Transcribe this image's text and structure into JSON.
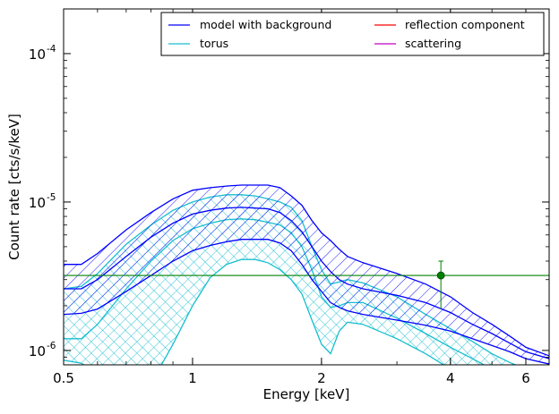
{
  "chart_data": {
    "type": "line",
    "xlabel": "Energy [keV]",
    "ylabel": "Count rate [cts/s/keV]",
    "xscale": "log",
    "yscale": "log",
    "xlim": [
      0.5,
      6.8
    ],
    "ylim": [
      8e-07,
      0.0002
    ],
    "x_ticks": [
      {
        "value": 0.5,
        "label": "0.5"
      },
      {
        "value": 1,
        "label": "1"
      },
      {
        "value": 2,
        "label": "2"
      },
      {
        "value": 4,
        "label": "4"
      },
      {
        "value": 6,
        "label": "6"
      }
    ],
    "y_ticks": [
      {
        "value": 1e-06,
        "mant": "10",
        "exp": "-6"
      },
      {
        "value": 1e-05,
        "mant": "10",
        "exp": "-5"
      },
      {
        "value": 0.0001,
        "mant": "10",
        "exp": "-4"
      }
    ],
    "legend": {
      "position": "top-right",
      "columns": 2,
      "entries": [
        {
          "label": "model with background",
          "color": "#0000ff"
        },
        {
          "label": "reflection component",
          "color": "#ff0000"
        },
        {
          "label": "torus",
          "color": "#17becf"
        },
        {
          "label": "scattering",
          "color": "#bf00bf"
        }
      ]
    },
    "series": [
      {
        "key": "model",
        "color": "#0000ff",
        "hatch": "diagonal",
        "x": [
          0.5,
          0.55,
          0.6,
          0.7,
          0.8,
          0.9,
          1.0,
          1.1,
          1.2,
          1.3,
          1.4,
          1.5,
          1.6,
          1.7,
          1.8,
          1.9,
          2.0,
          2.1,
          2.2,
          2.3,
          2.5,
          3.0,
          3.5,
          4.0,
          4.5,
          5.0,
          5.5,
          6.0,
          6.8
        ],
        "upper": [
          3.8e-06,
          3.8e-06,
          4.5e-06,
          6.5e-06,
          8.5e-06,
          1.05e-05,
          1.2e-05,
          1.25e-05,
          1.28e-05,
          1.3e-05,
          1.3e-05,
          1.3e-05,
          1.25e-05,
          1.1e-05,
          9.5e-06,
          7.5e-06,
          6.2e-06,
          5.5e-06,
          4.8e-06,
          4.3e-06,
          3.9e-06,
          3.3e-06,
          2.8e-06,
          2.3e-06,
          1.8e-06,
          1.5e-06,
          1.25e-06,
          1.05e-06,
          9.2e-07
        ],
        "median": [
          2.6e-06,
          2.6e-06,
          3e-06,
          4.3e-06,
          5.8e-06,
          7.2e-06,
          8.3e-06,
          8.8e-06,
          9.1e-06,
          9.2e-06,
          9.1e-06,
          9e-06,
          8.5e-06,
          7.5e-06,
          6.3e-06,
          5e-06,
          4e-06,
          3.4e-06,
          3e-06,
          2.8e-06,
          2.6e-06,
          2.35e-06,
          2.1e-06,
          1.8e-06,
          1.5e-06,
          1.3e-06,
          1.12e-06,
          9.8e-07,
          8.8e-07
        ],
        "lower": [
          1.75e-06,
          1.78e-06,
          1.9e-06,
          2.5e-06,
          3.2e-06,
          4e-06,
          4.7e-06,
          5.1e-06,
          5.4e-06,
          5.6e-06,
          5.6e-06,
          5.6e-06,
          5.3e-06,
          4.7e-06,
          3.8e-06,
          3e-06,
          2.5e-06,
          2.1e-06,
          1.95e-06,
          1.85e-06,
          1.75e-06,
          1.6e-06,
          1.48e-06,
          1.35e-06,
          1.2e-06,
          1.08e-06,
          9.8e-07,
          8.8e-07,
          8.1e-07
        ]
      },
      {
        "key": "torus",
        "color": "#17becf",
        "hatch": "cross",
        "x": [
          0.5,
          0.55,
          0.6,
          0.7,
          0.8,
          0.9,
          1.0,
          1.1,
          1.2,
          1.3,
          1.4,
          1.5,
          1.6,
          1.7,
          1.8,
          1.9,
          2.0,
          2.1,
          2.2,
          2.3,
          2.5,
          3.0,
          3.5,
          4.0,
          4.5,
          5.0,
          5.5,
          6.0
        ],
        "upper": [
          2.6e-06,
          2.7e-06,
          3.3e-06,
          5.2e-06,
          7e-06,
          8.8e-06,
          1e-05,
          1.08e-05,
          1.12e-05,
          1.12e-05,
          1.1e-05,
          1.05e-05,
          1e-05,
          9.2e-06,
          7.5e-06,
          5e-06,
          3.5e-06,
          2.8e-06,
          2.9e-06,
          3e-06,
          2.85e-06,
          2.3e-06,
          1.75e-06,
          1.4e-06,
          1.15e-06,
          9.5e-07,
          8.3e-07,
          7.5e-07
        ],
        "median": [
          1.2e-06,
          1.2e-06,
          1.5e-06,
          2.6e-06,
          4e-06,
          5.5e-06,
          6.6e-06,
          7.2e-06,
          7.6e-06,
          7.7e-06,
          7.6e-06,
          7.3e-06,
          7e-06,
          6.2e-06,
          5e-06,
          3.5e-06,
          2.3e-06,
          1.95e-06,
          2e-06,
          2.1e-06,
          2.1e-06,
          1.65e-06,
          1.3e-06,
          1.05e-06,
          8.8e-07,
          7.5e-07,
          6.7e-07,
          6e-07
        ],
        "lower": [
          8.6e-07,
          8.2e-07,
          7e-07,
          5.5e-07,
          6e-07,
          1.1e-06,
          2e-06,
          3.1e-06,
          3.8e-06,
          4.1e-06,
          4.1e-06,
          3.9e-06,
          3.5e-06,
          3e-06,
          2.4e-06,
          1.6e-06,
          1.1e-06,
          9.5e-07,
          1.35e-06,
          1.55e-06,
          1.5e-06,
          1.2e-06,
          9.5e-07,
          7.5e-07,
          6.2e-07,
          5.5e-07,
          5e-07,
          4.5e-07
        ]
      }
    ],
    "background_level": {
      "y": 3.2e-06,
      "color": "#008000"
    },
    "data_point": {
      "x": 3.8,
      "y": 3.2e-06,
      "y_err_low": 1.9e-06,
      "y_err_high": 4e-06,
      "x_err": [
        3.75,
        3.85
      ],
      "color": "#008000"
    }
  }
}
